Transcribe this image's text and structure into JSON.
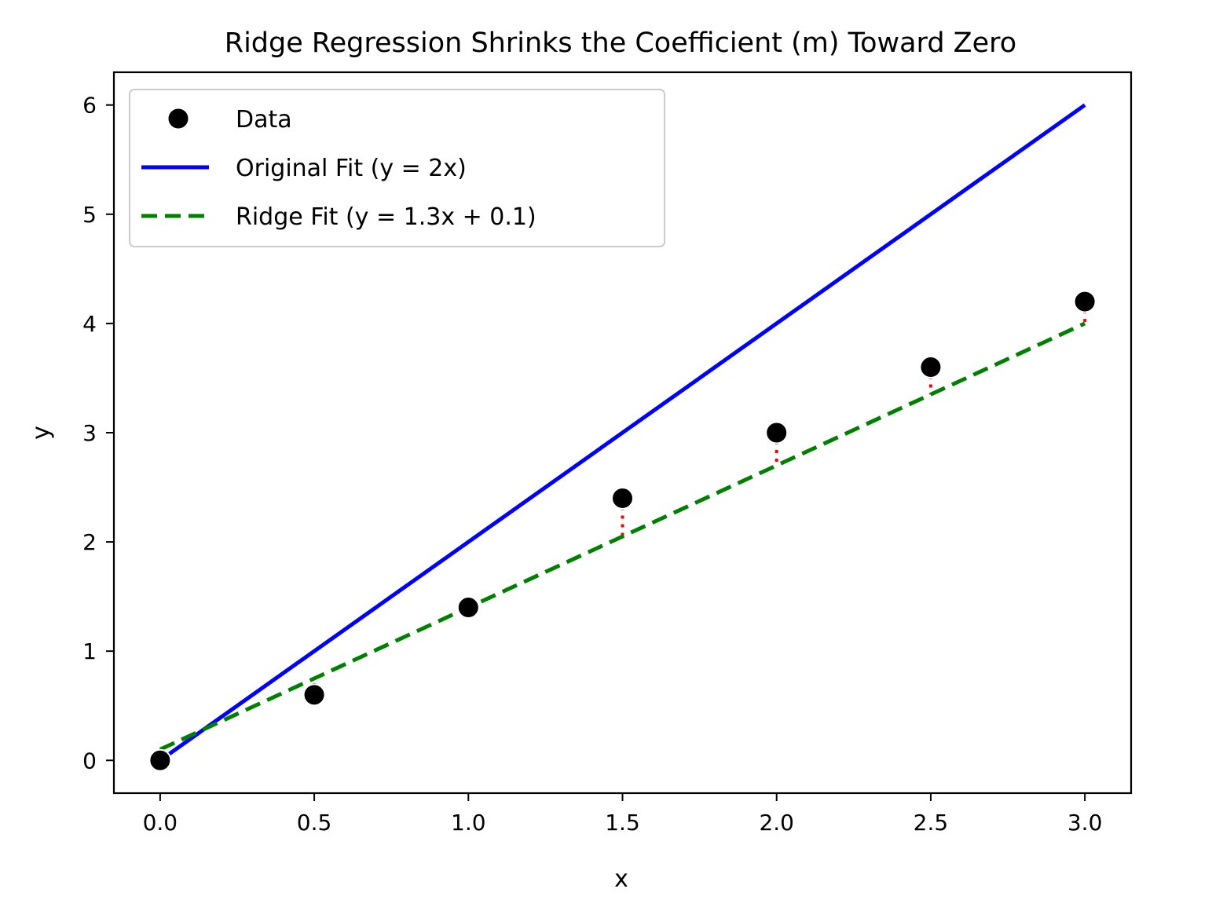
{
  "chart_data": {
    "type": "scatter",
    "title": "Ridge Regression Shrinks the Coefficient (m) Toward Zero",
    "xlabel": "x",
    "ylabel": "y",
    "xlim": [
      -0.15,
      3.15
    ],
    "ylim": [
      -0.3,
      6.3
    ],
    "xticks": [
      "0.0",
      "0.5",
      "1.0",
      "1.5",
      "2.0",
      "2.5",
      "3.0"
    ],
    "xtick_values": [
      0.0,
      0.5,
      1.0,
      1.5,
      2.0,
      2.5,
      3.0
    ],
    "yticks": [
      "0",
      "1",
      "2",
      "3",
      "4",
      "5",
      "6"
    ],
    "ytick_values": [
      0,
      1,
      2,
      3,
      4,
      5,
      6
    ],
    "grid": false,
    "legend_position": "top-left",
    "series": [
      {
        "name": "Data",
        "kind": "scatter",
        "color": "#000000",
        "x": [
          0.0,
          0.5,
          1.0,
          1.5,
          2.0,
          2.5,
          3.0
        ],
        "y": [
          0.0,
          0.6,
          1.4,
          2.4,
          3.0,
          3.6,
          4.2
        ]
      },
      {
        "name": "Original Fit (y = 2x)",
        "kind": "line",
        "style": "solid",
        "color": "#0000ff",
        "x": [
          0.0,
          3.0
        ],
        "y": [
          0.0,
          6.0
        ]
      },
      {
        "name": "Ridge Fit (y = 1.3x + 0.1)",
        "kind": "line",
        "style": "dashed",
        "color": "#008000",
        "x": [
          0.0,
          3.0
        ],
        "y": [
          0.1,
          4.0
        ]
      }
    ],
    "residuals": {
      "color": "#ff0000",
      "style": "dotted",
      "x": [
        0.0,
        0.5,
        1.0,
        1.5,
        2.0,
        2.5,
        3.0
      ],
      "y_from": [
        0.0,
        0.6,
        1.4,
        2.4,
        3.0,
        3.6,
        4.2
      ],
      "y_to": [
        0.1,
        0.75,
        1.4,
        2.05,
        2.7,
        3.35,
        4.0
      ]
    }
  }
}
